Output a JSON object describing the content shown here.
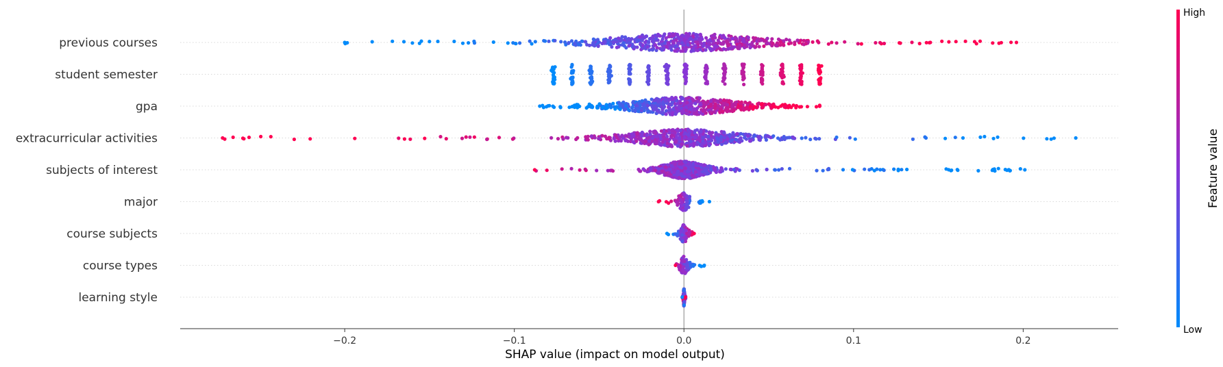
{
  "chart_data": {
    "type": "scatter",
    "subtype": "shap-beeswarm",
    "title": "",
    "xlabel": "SHAP value (impact on model output)",
    "ylabel": "",
    "xlim": [
      -0.297,
      0.256
    ],
    "x_ticks": [
      -0.2,
      -0.1,
      0.0,
      0.1,
      0.2
    ],
    "x_tick_labels": [
      "−0.2",
      "−0.1",
      "0.0",
      "0.1",
      "0.2"
    ],
    "zero_line": 0.0,
    "row_gridlines": true,
    "color_low": "#008bfb",
    "color_mid": "#8a35d6",
    "color_high": "#ff0052",
    "colorbar": {
      "title": "Feature value",
      "low_label": "Low",
      "high_label": "High",
      "placement": "right"
    },
    "features": [
      {
        "name": "previous courses",
        "min": -0.2,
        "max": 0.196,
        "spread": 0.07,
        "color_mode": "increasing",
        "discrete": []
      },
      {
        "name": "student semester",
        "min": -0.077,
        "max": 0.08,
        "spread": 0.03,
        "color_mode": "increasing",
        "discrete": [
          -0.077,
          -0.066,
          -0.055,
          -0.044,
          -0.032,
          -0.021,
          -0.01,
          0.001,
          0.013,
          0.024,
          0.035,
          0.046,
          0.058,
          0.069,
          0.08
        ]
      },
      {
        "name": "gpa",
        "min": -0.085,
        "max": 0.08,
        "spread": 0.05,
        "color_mode": "increasing",
        "discrete": []
      },
      {
        "name": "extracurricular activities",
        "min": -0.272,
        "max": 0.231,
        "spread": 0.05,
        "color_mode": "decreasing",
        "discrete": []
      },
      {
        "name": "subjects of interest",
        "min": -0.088,
        "max": 0.201,
        "spread": 0.02,
        "color_mode": "decreasing",
        "discrete": []
      },
      {
        "name": "major",
        "min": -0.015,
        "max": 0.015,
        "spread": 0.006,
        "color_mode": "decreasing",
        "discrete": []
      },
      {
        "name": "course subjects",
        "min": -0.01,
        "max": 0.006,
        "spread": 0.004,
        "color_mode": "increasing",
        "discrete": []
      },
      {
        "name": "course types",
        "min": -0.005,
        "max": 0.012,
        "spread": 0.004,
        "color_mode": "decreasing",
        "discrete": []
      },
      {
        "name": "learning style",
        "min": -0.001,
        "max": 0.001,
        "spread": 0.0005,
        "color_mode": "mixed",
        "discrete": []
      }
    ]
  }
}
